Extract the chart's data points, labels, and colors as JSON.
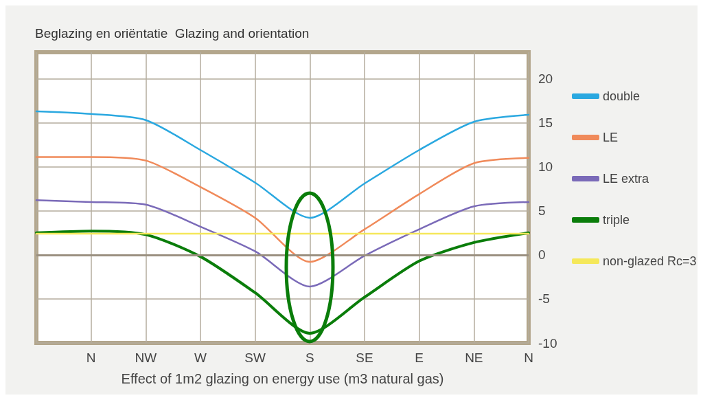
{
  "chart_data": {
    "type": "line",
    "title": "Beglazing en oriëntatie  Glazing and orientation",
    "xlabel": "Effect of 1m2 glazing on energy use (m3 natural gas)",
    "categories": [
      null,
      "N",
      "NW",
      "W",
      "SW",
      "S",
      "SE",
      "E",
      "NE",
      "N"
    ],
    "ylim": [
      -10,
      23
    ],
    "yticks": [
      -10,
      -5,
      0,
      5,
      10,
      15,
      20
    ],
    "grid": true,
    "legend": "right",
    "marker": "none",
    "line_style": "solid",
    "ref_lines": [
      {
        "axis": "y",
        "value": 0,
        "color": "#9a9080"
      }
    ],
    "series": [
      {
        "name": "double",
        "color": "#2aa8e0",
        "values": [
          16.3,
          16.0,
          15.3,
          11.9,
          8.2,
          4.2,
          8.1,
          11.9,
          15.1,
          15.9
        ]
      },
      {
        "name": "LE",
        "color": "#f08a5a",
        "values": [
          11.1,
          11.1,
          10.7,
          7.7,
          4.2,
          -0.8,
          2.9,
          6.9,
          10.4,
          11.0
        ]
      },
      {
        "name": "LE extra",
        "color": "#7a6ab8",
        "values": [
          6.2,
          6.0,
          5.7,
          3.2,
          0.4,
          -3.6,
          -0.1,
          2.9,
          5.5,
          6.0
        ]
      },
      {
        "name": "triple",
        "color": "#0a7d0a",
        "values": [
          2.5,
          2.7,
          2.3,
          -0.2,
          -4.3,
          -8.9,
          -4.8,
          -0.7,
          1.4,
          2.5
        ]
      },
      {
        "name": "non-glazed Rc=3",
        "color": "#f5e85a",
        "values": [
          2.4,
          2.4,
          2.4,
          2.4,
          2.4,
          2.4,
          2.4,
          2.4,
          2.4,
          2.4
        ]
      }
    ]
  }
}
